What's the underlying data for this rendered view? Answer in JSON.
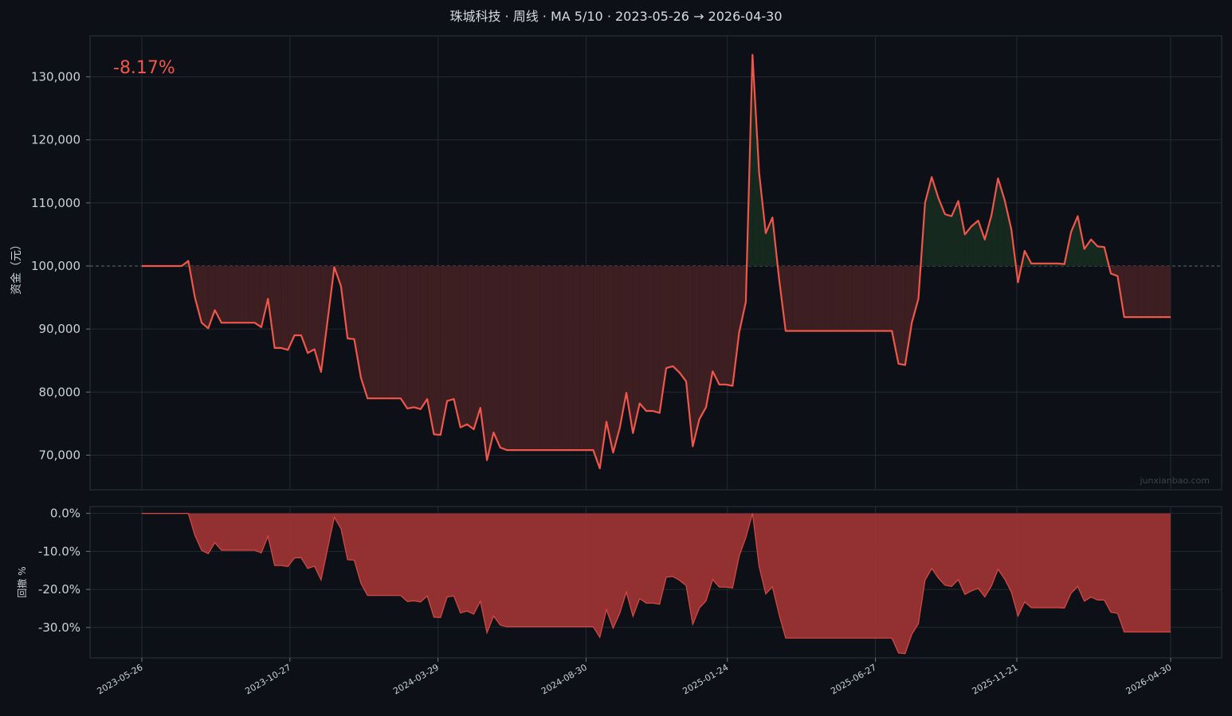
{
  "title": "珠城科技 · 周线 · MA 5/10 · 2023-05-26 → 2026-04-30",
  "return_label": "-8.17%",
  "watermark": "junxianbao.com",
  "colors": {
    "background": "#0d1117",
    "line": "#f0564a",
    "loss_fill": "#3d1f22",
    "gain_fill": "#16291f",
    "drawdown_fill": "#9b3434",
    "grid": "#232a33",
    "axis_text": "#c9d1d9"
  },
  "x_axis": {
    "ticks": [
      "2023-05-26",
      "2023-10-27",
      "2024-03-29",
      "2024-08-30",
      "2025-01-24",
      "2025-06-27",
      "2025-11-21",
      "2026-04-30"
    ]
  },
  "chart_data": [
    {
      "type": "area",
      "title": "珠城科技 · 周线 · MA 5/10 · 2023-05-26 → 2026-04-30",
      "ylabel": "资金（元）",
      "baseline": 100000,
      "ylim": [
        64500,
        136500
      ],
      "yticks": [
        70000,
        80000,
        90000,
        100000,
        110000,
        120000,
        130000
      ],
      "ytick_labels": [
        "70,000",
        "80,000",
        "90,000",
        "100,000",
        "110,000",
        "120,000",
        "130,000"
      ],
      "x_start": "2023-05-26",
      "x_end": "2026-04-30",
      "x_ticks": [
        "2023-05-26",
        "2023-10-27",
        "2024-03-29",
        "2024-08-30",
        "2025-01-24",
        "2025-06-27",
        "2025-11-21",
        "2026-04-30"
      ],
      "values": [
        100000,
        100000,
        100000,
        100000,
        100000,
        100000,
        100000,
        100800,
        95000,
        91000,
        90100,
        93000,
        91000,
        91000,
        91000,
        91000,
        91000,
        91000,
        90300,
        94800,
        87000,
        87000,
        86700,
        89000,
        89000,
        86200,
        86800,
        83200,
        91500,
        99800,
        96800,
        88500,
        88400,
        82300,
        79000,
        79000,
        79000,
        79000,
        79000,
        79000,
        77400,
        77600,
        77300,
        78900,
        73300,
        73200,
        78600,
        78900,
        74400,
        74900,
        74100,
        77500,
        69200,
        73600,
        71200,
        70800,
        70800,
        70800,
        70800,
        70800,
        70800,
        70800,
        70800,
        70800,
        70800,
        70800,
        70800,
        70800,
        70800,
        67900,
        75300,
        70400,
        74300,
        79900,
        73500,
        78200,
        77000,
        77000,
        76700,
        83800,
        84100,
        83100,
        81700,
        71400,
        75700,
        77600,
        83300,
        81200,
        81200,
        81000,
        89500,
        94300,
        133500,
        114800,
        105200,
        107700,
        98000,
        89700,
        89700,
        89700,
        89700,
        89700,
        89700,
        89700,
        89700,
        89700,
        89700,
        89700,
        89700,
        89700,
        89700,
        89700,
        89700,
        89700,
        84500,
        84300,
        91000,
        94800,
        110000,
        114100,
        110800,
        108200,
        107900,
        110300,
        105000,
        106300,
        107200,
        104200,
        108000,
        113900,
        110400,
        105800,
        97400,
        102400,
        100400,
        100400,
        100400,
        100400,
        100400,
        100300,
        105400,
        107900,
        102700,
        104200,
        103100,
        103000,
        98800,
        98400,
        91900,
        91900,
        91900,
        91900,
        91900,
        91900,
        91900,
        91900
      ]
    },
    {
      "type": "area",
      "ylabel": "回撤 %",
      "ylim": [
        -38.0,
        1.8
      ],
      "yticks": [
        0,
        -10,
        -20,
        -30
      ],
      "ytick_labels": [
        "0.0%",
        "-10.0%",
        "-20.0%",
        "-30.0%"
      ],
      "x_start": "2023-05-26",
      "x_end": "2026-04-30",
      "values": [
        0,
        0,
        0,
        0,
        0,
        0,
        0,
        0,
        -5.8,
        -9.7,
        -10.6,
        -7.7,
        -9.7,
        -9.7,
        -9.7,
        -9.7,
        -9.7,
        -9.7,
        -10.4,
        -6.0,
        -13.7,
        -13.7,
        -14.0,
        -11.7,
        -11.7,
        -14.5,
        -13.9,
        -17.5,
        -9.2,
        -1.0,
        -4.0,
        -12.2,
        -12.3,
        -18.4,
        -21.6,
        -21.6,
        -21.6,
        -21.6,
        -21.6,
        -21.6,
        -23.2,
        -23.0,
        -23.3,
        -21.7,
        -27.3,
        -27.4,
        -22.0,
        -21.7,
        -26.2,
        -25.7,
        -26.5,
        -23.1,
        -31.4,
        -27.0,
        -29.4,
        -29.8,
        -29.8,
        -29.8,
        -29.8,
        -29.8,
        -29.8,
        -29.8,
        -29.8,
        -29.8,
        -29.8,
        -29.8,
        -29.8,
        -29.8,
        -29.8,
        -32.6,
        -25.3,
        -30.2,
        -26.3,
        -20.7,
        -27.1,
        -22.4,
        -23.6,
        -23.6,
        -23.9,
        -16.8,
        -16.6,
        -17.6,
        -19.0,
        -29.2,
        -24.9,
        -23.0,
        -17.4,
        -19.4,
        -19.4,
        -19.6,
        -11.2,
        -6.4,
        0,
        -14.0,
        -21.2,
        -19.3,
        -26.6,
        -32.8,
        -32.8,
        -32.8,
        -32.8,
        -32.8,
        -32.8,
        -32.8,
        -32.8,
        -32.8,
        -32.8,
        -32.8,
        -32.8,
        -32.8,
        -32.8,
        -32.8,
        -32.8,
        -32.8,
        -36.7,
        -36.9,
        -31.8,
        -29.0,
        -17.6,
        -14.5,
        -17.0,
        -18.9,
        -19.2,
        -17.4,
        -21.3,
        -20.4,
        -19.7,
        -22.0,
        -19.1,
        -14.7,
        -17.3,
        -20.7,
        -27.0,
        -23.3,
        -24.8,
        -24.8,
        -24.8,
        -24.8,
        -24.8,
        -24.9,
        -21.0,
        -19.2,
        -23.1,
        -22.0,
        -22.8,
        -22.8,
        -26.0,
        -26.3,
        -31.2,
        -31.2,
        -31.2,
        -31.2,
        -31.2,
        -31.2,
        -31.2,
        -31.2
      ]
    }
  ]
}
